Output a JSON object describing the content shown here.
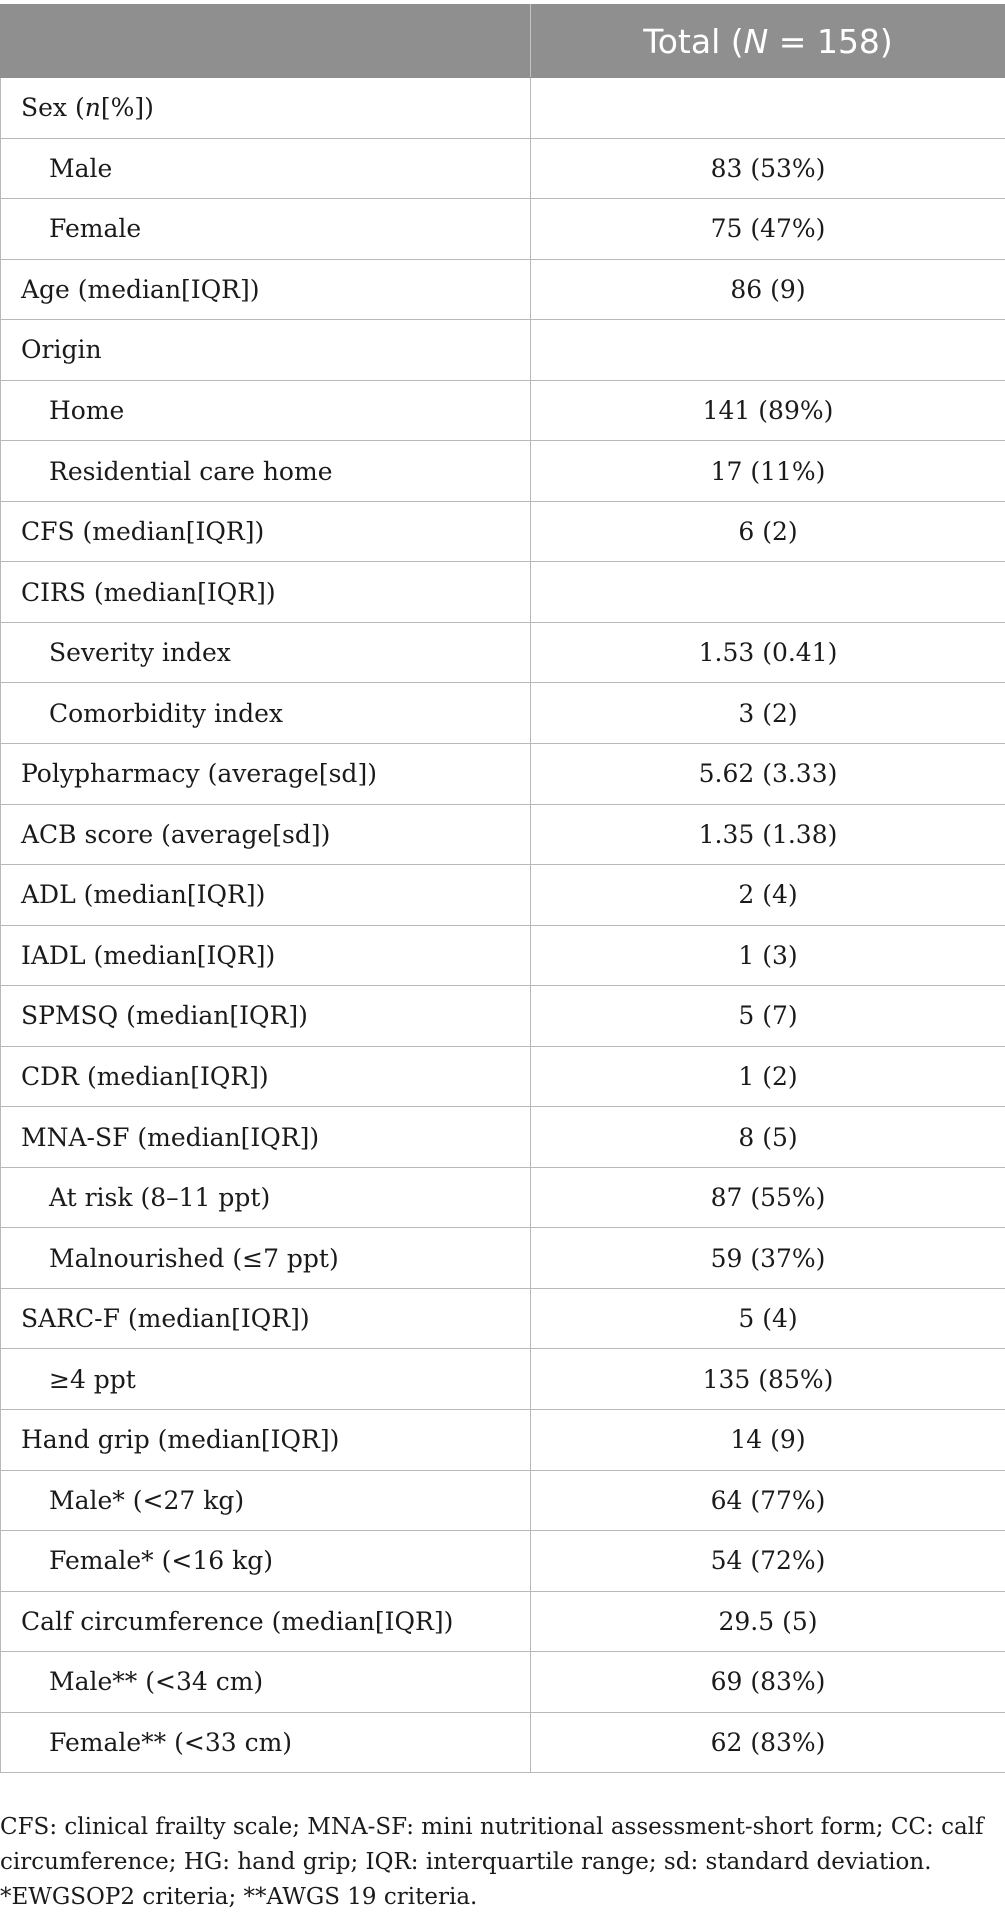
{
  "header": {
    "label_column": "",
    "total_prefix": "Total (",
    "total_n_symbol": "N",
    "total_suffix": " = 158)"
  },
  "rows": [
    {
      "label": "Sex (",
      "label_ital": "n",
      "label_tail": "[%])",
      "value": "",
      "indent": false
    },
    {
      "label": "Male",
      "value": "83 (53%)",
      "indent": true
    },
    {
      "label": "Female",
      "value": "75 (47%)",
      "indent": true
    },
    {
      "label": "Age (median[IQR])",
      "value": "86 (9)",
      "indent": false
    },
    {
      "label": "Origin",
      "value": "",
      "indent": false
    },
    {
      "label": "Home",
      "value": "141 (89%)",
      "indent": true
    },
    {
      "label": "Residential care home",
      "value": "17 (11%)",
      "indent": true
    },
    {
      "label": "CFS (median[IQR])",
      "value": "6 (2)",
      "indent": false
    },
    {
      "label": "CIRS (median[IQR])",
      "value": "",
      "indent": false
    },
    {
      "label": "Severity index",
      "value": "1.53 (0.41)",
      "indent": true
    },
    {
      "label": "Comorbidity index",
      "value": "3 (2)",
      "indent": true
    },
    {
      "label": "Polypharmacy (average[sd])",
      "value": "5.62 (3.33)",
      "indent": false
    },
    {
      "label": "ACB score (average[sd])",
      "value": "1.35 (1.38)",
      "indent": false
    },
    {
      "label": "ADL (median[IQR])",
      "value": "2 (4)",
      "indent": false
    },
    {
      "label": "IADL (median[IQR])",
      "value": "1 (3)",
      "indent": false
    },
    {
      "label": "SPMSQ (median[IQR])",
      "value": "5 (7)",
      "indent": false
    },
    {
      "label": "CDR (median[IQR])",
      "value": "1 (2)",
      "indent": false
    },
    {
      "label": "MNA-SF (median[IQR])",
      "value": "8 (5)",
      "indent": false
    },
    {
      "label": "At risk (8–11 ppt)",
      "value": "87 (55%)",
      "indent": true
    },
    {
      "label": "Malnourished (≤7 ppt)",
      "value": "59 (37%)",
      "indent": true
    },
    {
      "label": "SARC-F (median[IQR])",
      "value": "5 (4)",
      "indent": false
    },
    {
      "label": "≥4 ppt",
      "value": "135 (85%)",
      "indent": true
    },
    {
      "label": "Hand grip (median[IQR])",
      "value": "14 (9)",
      "indent": false
    },
    {
      "label": "Male* (<27 kg)",
      "value": "64 (77%)",
      "indent": true
    },
    {
      "label": "Female* (<16 kg)",
      "value": "54 (72%)",
      "indent": true
    },
    {
      "label": "Calf circumference (median[IQR])",
      "value": "29.5 (5)",
      "indent": false
    },
    {
      "label": "Male** (<34 cm)",
      "value": "69 (83%)",
      "indent": true
    },
    {
      "label": "Female** (<33 cm)",
      "value": "62 (83%)",
      "indent": true
    }
  ],
  "footnote": "CFS: clinical frailty scale; MNA-SF: mini nutritional assessment-short form; CC: calf circumference; HG: hand grip; IQR: interquartile range; sd: standard deviation. *EWGSOP2 criteria; **AWGS 19 criteria."
}
